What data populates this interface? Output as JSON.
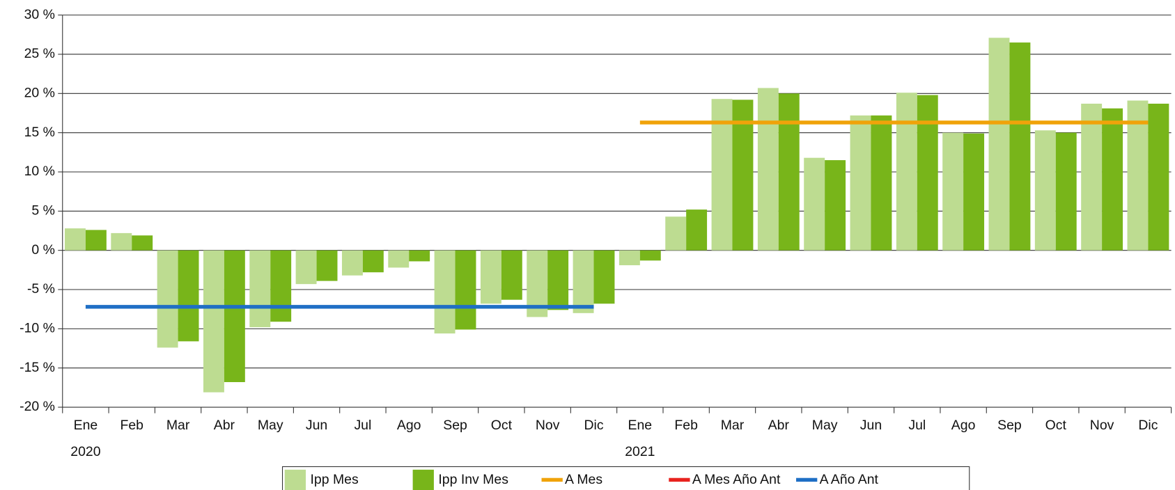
{
  "chart_data": {
    "type": "bar",
    "categories": [
      "Ene",
      "Feb",
      "Mar",
      "Abr",
      "May",
      "Jun",
      "Jul",
      "Ago",
      "Sep",
      "Oct",
      "Nov",
      "Dic",
      "Ene",
      "Feb",
      "Mar",
      "Abr",
      "May",
      "Jun",
      "Jul",
      "Ago",
      "Sep",
      "Oct",
      "Nov",
      "Dic"
    ],
    "years": [
      "2020",
      null,
      null,
      null,
      null,
      null,
      null,
      null,
      null,
      null,
      null,
      null,
      "2021",
      null,
      null,
      null,
      null,
      null,
      null,
      null,
      null,
      null,
      null,
      null
    ],
    "series": [
      {
        "name": "Ipp Mes",
        "type": "bar",
        "color": "#bddc91",
        "values": [
          2.8,
          2.2,
          -12.4,
          -18.1,
          -9.8,
          -4.3,
          -3.2,
          -2.2,
          -10.6,
          -6.8,
          -8.5,
          -8.0,
          -1.9,
          4.3,
          19.3,
          20.7,
          11.8,
          17.2,
          20.1,
          15.0,
          27.1,
          15.3,
          18.7,
          19.1
        ]
      },
      {
        "name": "Ipp Inv Mes",
        "type": "bar",
        "color": "#78b51a",
        "values": [
          2.6,
          1.9,
          -11.6,
          -16.8,
          -9.1,
          -3.9,
          -2.8,
          -1.4,
          -10.1,
          -6.3,
          -7.6,
          -6.8,
          -1.3,
          5.2,
          19.2,
          20.0,
          11.5,
          17.2,
          19.8,
          14.9,
          26.5,
          15.0,
          18.1,
          18.7
        ]
      },
      {
        "name": "A Mes",
        "type": "line",
        "color": "#f0a30a",
        "values": [
          null,
          null,
          null,
          null,
          null,
          null,
          null,
          null,
          null,
          null,
          null,
          null,
          16.3,
          16.3,
          16.3,
          16.3,
          16.3,
          16.3,
          16.3,
          16.3,
          16.3,
          16.3,
          16.3,
          16.3
        ]
      },
      {
        "name": "A Mes Año Ant",
        "type": "line",
        "color": "#e8231f",
        "values": [
          null,
          null,
          null,
          null,
          null,
          null,
          null,
          null,
          null,
          null,
          null,
          null,
          null,
          null,
          null,
          null,
          null,
          null,
          null,
          null,
          null,
          null,
          null,
          null
        ]
      },
      {
        "name": "A Año Ant",
        "type": "line",
        "color": "#1f6fc5",
        "values": [
          -7.2,
          -7.2,
          -7.2,
          -7.2,
          -7.2,
          -7.2,
          -7.2,
          -7.2,
          -7.2,
          -7.2,
          -7.2,
          -7.2,
          null,
          null,
          null,
          null,
          null,
          null,
          null,
          null,
          null,
          null,
          null,
          null
        ]
      }
    ],
    "ylim": [
      -20,
      30
    ],
    "yticks": [
      {
        "value": -20,
        "label": "-20 %"
      },
      {
        "value": -15,
        "label": "-15 %"
      },
      {
        "value": -10,
        "label": "-10 %"
      },
      {
        "value": -5,
        "label": "-5 %"
      },
      {
        "value": 0,
        "label": "0 %"
      },
      {
        "value": 5,
        "label": "5 %"
      },
      {
        "value": 10,
        "label": "10 %"
      },
      {
        "value": 15,
        "label": "15 %"
      },
      {
        "value": 20,
        "label": "20 %"
      },
      {
        "value": 25,
        "label": "25 %"
      },
      {
        "value": 30,
        "label": "30 %"
      }
    ],
    "grid": true
  }
}
